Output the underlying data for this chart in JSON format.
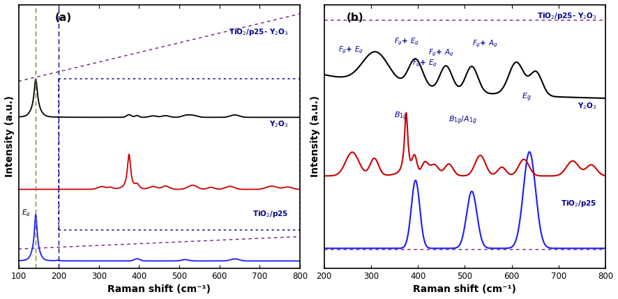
{
  "fig_width": 8.86,
  "fig_height": 4.29,
  "dpi": 100,
  "panel_a_label": "(a)",
  "panel_b_label": "(b)",
  "xlabel": "Raman shift (cm⁻¹)",
  "ylabel": "Intensity (a.u.)",
  "colors": {
    "tio2": "#1a1aff",
    "y2o3": "#cc0000",
    "composite": "#000000",
    "purple_dash": "#7b2d8b",
    "blue_dash": "#00008b",
    "vline_green": "#6b8e23",
    "vline_blue": "#00008b"
  },
  "label_color": "#00008b"
}
